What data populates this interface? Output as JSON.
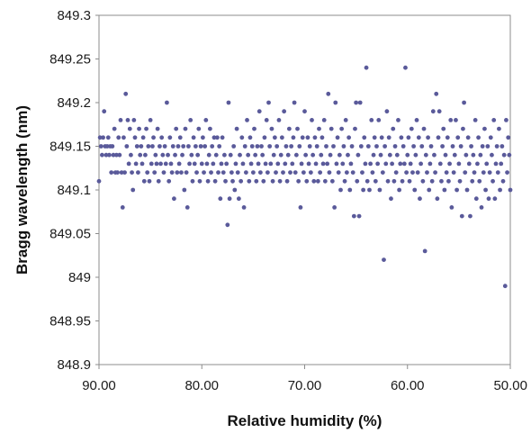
{
  "chart_data": {
    "type": "scatter",
    "title": "",
    "xlabel": "Relative humidity (%)",
    "ylabel": "Bragg wavelength (nm)",
    "xlim": [
      90.0,
      50.0
    ],
    "x_reversed": true,
    "ylim": [
      848.9,
      849.3
    ],
    "x_ticks": [
      "90.00",
      "80.00",
      "70.00",
      "60.00",
      "50.00"
    ],
    "y_ticks": [
      "849.3",
      "849.25",
      "849.2",
      "849.15",
      "849.1",
      "849.05",
      "849",
      "848.95",
      "848.9"
    ],
    "grid": false,
    "legend": "none",
    "marker_color": "#5a5a9a",
    "points": [
      [
        90.0,
        849.11
      ],
      [
        89.9,
        849.16
      ],
      [
        89.8,
        849.15
      ],
      [
        89.7,
        849.14
      ],
      [
        89.6,
        849.16
      ],
      [
        89.5,
        849.19
      ],
      [
        89.4,
        849.15
      ],
      [
        89.3,
        849.14
      ],
      [
        89.2,
        849.15
      ],
      [
        89.1,
        849.16
      ],
      [
        89.0,
        849.14
      ],
      [
        88.9,
        849.15
      ],
      [
        88.8,
        849.12
      ],
      [
        88.7,
        849.15
      ],
      [
        88.6,
        849.14
      ],
      [
        88.5,
        849.17
      ],
      [
        88.4,
        849.12
      ],
      [
        88.3,
        849.14
      ],
      [
        88.2,
        849.12
      ],
      [
        88.1,
        849.16
      ],
      [
        88.0,
        849.14
      ],
      [
        87.9,
        849.18
      ],
      [
        87.8,
        849.12
      ],
      [
        87.7,
        849.08
      ],
      [
        87.6,
        849.16
      ],
      [
        87.5,
        849.12
      ],
      [
        87.4,
        849.21
      ],
      [
        87.3,
        849.15
      ],
      [
        87.2,
        849.18
      ],
      [
        87.1,
        849.13
      ],
      [
        87.0,
        849.17
      ],
      [
        86.9,
        849.14
      ],
      [
        86.8,
        849.12
      ],
      [
        86.7,
        849.1
      ],
      [
        86.6,
        849.18
      ],
      [
        86.5,
        849.16
      ],
      [
        86.4,
        849.13
      ],
      [
        86.3,
        849.15
      ],
      [
        86.2,
        849.12
      ],
      [
        86.1,
        849.17
      ],
      [
        86.0,
        849.14
      ],
      [
        85.9,
        849.15
      ],
      [
        85.8,
        849.13
      ],
      [
        85.7,
        849.16
      ],
      [
        85.6,
        849.11
      ],
      [
        85.5,
        849.14
      ],
      [
        85.4,
        849.17
      ],
      [
        85.3,
        849.12
      ],
      [
        85.2,
        849.15
      ],
      [
        85.1,
        849.11
      ],
      [
        85.0,
        849.18
      ],
      [
        84.9,
        849.13
      ],
      [
        84.8,
        849.15
      ],
      [
        84.7,
        849.16
      ],
      [
        84.6,
        849.12
      ],
      [
        84.5,
        849.14
      ],
      [
        84.4,
        849.13
      ],
      [
        84.3,
        849.17
      ],
      [
        84.2,
        849.11
      ],
      [
        84.1,
        849.15
      ],
      [
        84.0,
        849.13
      ],
      [
        83.9,
        849.16
      ],
      [
        83.8,
        849.14
      ],
      [
        83.7,
        849.12
      ],
      [
        83.6,
        849.15
      ],
      [
        83.5,
        849.13
      ],
      [
        83.4,
        849.2
      ],
      [
        83.3,
        849.14
      ],
      [
        83.2,
        849.11
      ],
      [
        83.1,
        849.16
      ],
      [
        83.0,
        849.13
      ],
      [
        82.9,
        849.12
      ],
      [
        82.8,
        849.15
      ],
      [
        82.7,
        849.09
      ],
      [
        82.6,
        849.14
      ],
      [
        82.5,
        849.17
      ],
      [
        82.4,
        849.12
      ],
      [
        82.3,
        849.15
      ],
      [
        82.2,
        849.13
      ],
      [
        82.1,
        849.16
      ],
      [
        82.0,
        849.12
      ],
      [
        81.9,
        849.14
      ],
      [
        81.8,
        849.15
      ],
      [
        81.7,
        849.1
      ],
      [
        81.6,
        849.17
      ],
      [
        81.5,
        849.12
      ],
      [
        81.4,
        849.08
      ],
      [
        81.3,
        849.15
      ],
      [
        81.2,
        849.13
      ],
      [
        81.1,
        849.18
      ],
      [
        81.0,
        849.14
      ],
      [
        80.9,
        849.11
      ],
      [
        80.8,
        849.16
      ],
      [
        80.7,
        849.13
      ],
      [
        80.6,
        849.15
      ],
      [
        80.5,
        849.12
      ],
      [
        80.4,
        849.14
      ],
      [
        80.3,
        849.17
      ],
      [
        80.2,
        849.11
      ],
      [
        80.1,
        849.15
      ],
      [
        80.0,
        849.13
      ],
      [
        79.9,
        849.16
      ],
      [
        79.8,
        849.12
      ],
      [
        79.7,
        849.15
      ],
      [
        79.6,
        849.18
      ],
      [
        79.5,
        849.13
      ],
      [
        79.4,
        849.11
      ],
      [
        79.3,
        849.14
      ],
      [
        79.2,
        849.17
      ],
      [
        79.1,
        849.12
      ],
      [
        79.0,
        849.15
      ],
      [
        78.9,
        849.13
      ],
      [
        78.8,
        849.16
      ],
      [
        78.7,
        849.11
      ],
      [
        78.6,
        849.14
      ],
      [
        78.5,
        849.16
      ],
      [
        78.4,
        849.12
      ],
      [
        78.3,
        849.15
      ],
      [
        78.2,
        849.09
      ],
      [
        78.1,
        849.13
      ],
      [
        78.0,
        849.16
      ],
      [
        77.9,
        849.12
      ],
      [
        77.8,
        849.14
      ],
      [
        77.7,
        849.11
      ],
      [
        77.6,
        849.13
      ],
      [
        77.5,
        849.06
      ],
      [
        77.4,
        849.2
      ],
      [
        77.3,
        849.09
      ],
      [
        77.2,
        849.14
      ],
      [
        77.1,
        849.12
      ],
      [
        77.0,
        849.11
      ],
      [
        76.9,
        849.15
      ],
      [
        76.8,
        849.1
      ],
      [
        76.7,
        849.13
      ],
      [
        76.6,
        849.17
      ],
      [
        76.5,
        849.12
      ],
      [
        76.4,
        849.09
      ],
      [
        76.3,
        849.14
      ],
      [
        76.2,
        849.11
      ],
      [
        76.1,
        849.16
      ],
      [
        76.0,
        849.13
      ],
      [
        75.9,
        849.08
      ],
      [
        75.8,
        849.15
      ],
      [
        75.7,
        849.12
      ],
      [
        75.6,
        849.18
      ],
      [
        75.5,
        849.14
      ],
      [
        75.4,
        849.11
      ],
      [
        75.3,
        849.16
      ],
      [
        75.2,
        849.13
      ],
      [
        75.1,
        849.15
      ],
      [
        75.0,
        849.12
      ],
      [
        74.9,
        849.17
      ],
      [
        74.8,
        849.14
      ],
      [
        74.7,
        849.11
      ],
      [
        74.6,
        849.15
      ],
      [
        74.5,
        849.13
      ],
      [
        74.4,
        849.19
      ],
      [
        74.3,
        849.12
      ],
      [
        74.2,
        849.15
      ],
      [
        74.1,
        849.14
      ],
      [
        74.0,
        849.11
      ],
      [
        73.9,
        849.16
      ],
      [
        73.8,
        849.13
      ],
      [
        73.7,
        849.18
      ],
      [
        73.6,
        849.12
      ],
      [
        73.5,
        849.2
      ],
      [
        73.4,
        849.15
      ],
      [
        73.3,
        849.13
      ],
      [
        73.2,
        849.17
      ],
      [
        73.1,
        849.11
      ],
      [
        73.0,
        849.14
      ],
      [
        72.9,
        849.16
      ],
      [
        72.8,
        849.12
      ],
      [
        72.7,
        849.15
      ],
      [
        72.6,
        849.13
      ],
      [
        72.5,
        849.18
      ],
      [
        72.4,
        849.11
      ],
      [
        72.3,
        849.14
      ],
      [
        72.2,
        849.16
      ],
      [
        72.1,
        849.12
      ],
      [
        72.0,
        849.19
      ],
      [
        71.9,
        849.13
      ],
      [
        71.8,
        849.15
      ],
      [
        71.7,
        849.11
      ],
      [
        71.6,
        849.14
      ],
      [
        71.5,
        849.17
      ],
      [
        71.4,
        849.12
      ],
      [
        71.3,
        849.15
      ],
      [
        71.2,
        849.13
      ],
      [
        71.1,
        849.16
      ],
      [
        71.0,
        849.2
      ],
      [
        70.9,
        849.12
      ],
      [
        70.8,
        849.14
      ],
      [
        70.7,
        849.17
      ],
      [
        70.6,
        849.11
      ],
      [
        70.5,
        849.15
      ],
      [
        70.4,
        849.08
      ],
      [
        70.3,
        849.13
      ],
      [
        70.2,
        849.16
      ],
      [
        70.1,
        849.12
      ],
      [
        70.0,
        849.19
      ],
      [
        69.9,
        849.14
      ],
      [
        69.8,
        849.11
      ],
      [
        69.7,
        849.16
      ],
      [
        69.6,
        849.13
      ],
      [
        69.5,
        849.15
      ],
      [
        69.4,
        849.12
      ],
      [
        69.3,
        849.18
      ],
      [
        69.2,
        849.14
      ],
      [
        69.1,
        849.11
      ],
      [
        69.0,
        849.16
      ],
      [
        68.9,
        849.13
      ],
      [
        68.8,
        849.15
      ],
      [
        68.7,
        849.11
      ],
      [
        68.6,
        849.17
      ],
      [
        68.5,
        849.12
      ],
      [
        68.4,
        849.14
      ],
      [
        68.3,
        849.16
      ],
      [
        68.2,
        849.13
      ],
      [
        68.1,
        849.18
      ],
      [
        68.0,
        849.11
      ],
      [
        67.9,
        849.15
      ],
      [
        67.8,
        849.13
      ],
      [
        67.7,
        849.21
      ],
      [
        67.6,
        849.12
      ],
      [
        67.5,
        849.14
      ],
      [
        67.4,
        849.17
      ],
      [
        67.3,
        849.11
      ],
      [
        67.2,
        849.15
      ],
      [
        67.1,
        849.08
      ],
      [
        67.0,
        849.2
      ],
      [
        66.9,
        849.13
      ],
      [
        66.8,
        849.16
      ],
      [
        66.7,
        849.12
      ],
      [
        66.6,
        849.14
      ],
      [
        66.5,
        849.1
      ],
      [
        66.4,
        849.17
      ],
      [
        66.3,
        849.13
      ],
      [
        66.2,
        849.15
      ],
      [
        66.1,
        849.11
      ],
      [
        66.0,
        849.18
      ],
      [
        65.9,
        849.12
      ],
      [
        65.8,
        849.14
      ],
      [
        65.7,
        849.16
      ],
      [
        65.6,
        849.1
      ],
      [
        65.5,
        849.13
      ],
      [
        65.4,
        849.15
      ],
      [
        65.3,
        849.12
      ],
      [
        65.2,
        849.07
      ],
      [
        65.1,
        849.17
      ],
      [
        65.0,
        849.2
      ],
      [
        64.9,
        849.11
      ],
      [
        64.8,
        849.14
      ],
      [
        64.7,
        849.07
      ],
      [
        64.6,
        849.2
      ],
      [
        64.5,
        849.15
      ],
      [
        64.4,
        849.12
      ],
      [
        64.3,
        849.1
      ],
      [
        64.2,
        849.16
      ],
      [
        64.1,
        849.13
      ],
      [
        64.0,
        849.24
      ],
      [
        63.9,
        849.11
      ],
      [
        63.8,
        849.15
      ],
      [
        63.7,
        849.1
      ],
      [
        63.6,
        849.13
      ],
      [
        63.5,
        849.18
      ],
      [
        63.4,
        849.12
      ],
      [
        63.3,
        849.14
      ],
      [
        63.2,
        849.16
      ],
      [
        63.1,
        849.11
      ],
      [
        63.0,
        849.15
      ],
      [
        62.9,
        849.13
      ],
      [
        62.8,
        849.18
      ],
      [
        62.7,
        849.1
      ],
      [
        62.6,
        849.14
      ],
      [
        62.5,
        849.16
      ],
      [
        62.4,
        849.12
      ],
      [
        62.3,
        849.02
      ],
      [
        62.2,
        849.15
      ],
      [
        62.1,
        849.13
      ],
      [
        62.0,
        849.19
      ],
      [
        61.9,
        849.11
      ],
      [
        61.8,
        849.16
      ],
      [
        61.7,
        849.14
      ],
      [
        61.6,
        849.09
      ],
      [
        61.5,
        849.13
      ],
      [
        61.4,
        849.17
      ],
      [
        61.3,
        849.11
      ],
      [
        61.2,
        849.15
      ],
      [
        61.1,
        849.12
      ],
      [
        61.0,
        849.14
      ],
      [
        60.9,
        849.18
      ],
      [
        60.8,
        849.1
      ],
      [
        60.7,
        849.13
      ],
      [
        60.6,
        849.16
      ],
      [
        60.5,
        849.11
      ],
      [
        60.4,
        849.15
      ],
      [
        60.3,
        849.13
      ],
      [
        60.2,
        849.24
      ],
      [
        60.1,
        849.12
      ],
      [
        60.0,
        849.14
      ],
      [
        59.9,
        849.16
      ],
      [
        59.8,
        849.11
      ],
      [
        59.7,
        849.13
      ],
      [
        59.6,
        849.17
      ],
      [
        59.5,
        849.12
      ],
      [
        59.4,
        849.15
      ],
      [
        59.3,
        849.1
      ],
      [
        59.2,
        849.14
      ],
      [
        59.1,
        849.18
      ],
      [
        59.0,
        849.12
      ],
      [
        58.9,
        849.16
      ],
      [
        58.8,
        849.09
      ],
      [
        58.7,
        849.13
      ],
      [
        58.6,
        849.15
      ],
      [
        58.5,
        849.11
      ],
      [
        58.4,
        849.17
      ],
      [
        58.3,
        849.03
      ],
      [
        58.2,
        849.14
      ],
      [
        58.1,
        849.12
      ],
      [
        58.0,
        849.16
      ],
      [
        57.9,
        849.1
      ],
      [
        57.8,
        849.13
      ],
      [
        57.7,
        849.15
      ],
      [
        57.6,
        849.11
      ],
      [
        57.5,
        849.19
      ],
      [
        57.4,
        849.14
      ],
      [
        57.3,
        849.12
      ],
      [
        57.2,
        849.21
      ],
      [
        57.1,
        849.09
      ],
      [
        57.0,
        849.16
      ],
      [
        56.9,
        849.19
      ],
      [
        56.8,
        849.13
      ],
      [
        56.7,
        849.11
      ],
      [
        56.6,
        849.15
      ],
      [
        56.5,
        849.17
      ],
      [
        56.4,
        849.1
      ],
      [
        56.3,
        849.14
      ],
      [
        56.2,
        849.12
      ],
      [
        56.1,
        849.16
      ],
      [
        56.0,
        849.11
      ],
      [
        55.9,
        849.13
      ],
      [
        55.8,
        849.18
      ],
      [
        55.7,
        849.08
      ],
      [
        55.6,
        849.15
      ],
      [
        55.5,
        849.12
      ],
      [
        55.4,
        849.14
      ],
      [
        55.3,
        849.18
      ],
      [
        55.2,
        849.1
      ],
      [
        55.1,
        849.16
      ],
      [
        55.0,
        849.13
      ],
      [
        54.9,
        849.11
      ],
      [
        54.8,
        849.15
      ],
      [
        54.7,
        849.07
      ],
      [
        54.6,
        849.17
      ],
      [
        54.5,
        849.2
      ],
      [
        54.4,
        849.12
      ],
      [
        54.3,
        849.14
      ],
      [
        54.2,
        849.1
      ],
      [
        54.1,
        849.16
      ],
      [
        54.0,
        849.13
      ],
      [
        53.9,
        849.07
      ],
      [
        53.8,
        849.15
      ],
      [
        53.7,
        849.11
      ],
      [
        53.6,
        849.14
      ],
      [
        53.5,
        849.12
      ],
      [
        53.4,
        849.18
      ],
      [
        53.3,
        849.09
      ],
      [
        53.2,
        849.13
      ],
      [
        53.1,
        849.16
      ],
      [
        53.0,
        849.11
      ],
      [
        52.9,
        849.14
      ],
      [
        52.8,
        849.08
      ],
      [
        52.7,
        849.15
      ],
      [
        52.6,
        849.12
      ],
      [
        52.5,
        849.17
      ],
      [
        52.4,
        849.1
      ],
      [
        52.3,
        849.13
      ],
      [
        52.2,
        849.15
      ],
      [
        52.1,
        849.09
      ],
      [
        52.0,
        849.12
      ],
      [
        51.9,
        849.16
      ],
      [
        51.8,
        849.14
      ],
      [
        51.7,
        849.11
      ],
      [
        51.6,
        849.18
      ],
      [
        51.5,
        849.09
      ],
      [
        51.4,
        849.13
      ],
      [
        51.3,
        849.15
      ],
      [
        51.2,
        849.12
      ],
      [
        51.1,
        849.17
      ],
      [
        51.0,
        849.1
      ],
      [
        50.9,
        849.13
      ],
      [
        50.8,
        849.15
      ],
      [
        50.7,
        849.11
      ],
      [
        50.6,
        849.14
      ],
      [
        50.5,
        848.99
      ],
      [
        50.4,
        849.18
      ],
      [
        50.3,
        849.12
      ],
      [
        50.2,
        849.16
      ],
      [
        50.1,
        849.14
      ],
      [
        50.0,
        849.1
      ]
    ]
  }
}
